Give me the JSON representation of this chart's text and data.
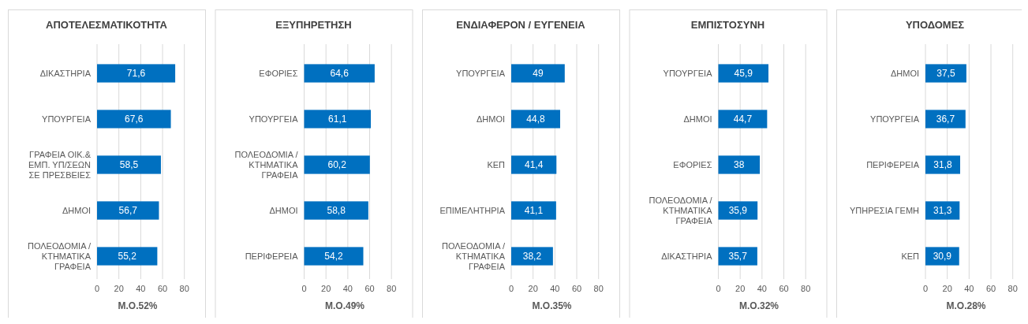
{
  "chart_data": [
    {
      "type": "bar",
      "orientation": "horizontal",
      "title": "ΑΠΟΤΕΛΕΣΜΑΤΙΚΟΤΗΤΑ",
      "xlabel": "Μ.Ο.52%",
      "categories": [
        "ΔΙΚΑΣΤΗΡΙΑ",
        "ΥΠΟΥΡΓΕΙΑ",
        "ΓΡΑΦΕΙΑ ΟΙΚ.& ΕΜΠ. ΥΠ/ΣΕΩΝ ΣΕ ΠΡΕΣΒΕΙΕΣ",
        "ΔΗΜΟΙ",
        "ΠΟΛΕΟΔΟΜΙΑ / ΚΤΗΜΑΤΙΚΑ ΓΡΑΦΕΙΑ"
      ],
      "values": [
        71.6,
        67.6,
        58.5,
        56.7,
        55.2
      ],
      "value_labels": [
        "71,6",
        "67,6",
        "58,5",
        "56,7",
        "55,2"
      ],
      "color": "#0070c0",
      "xlim": [
        0,
        80
      ],
      "xticks": [
        0,
        20,
        40,
        60,
        80
      ],
      "grid": "x"
    },
    {
      "type": "bar",
      "orientation": "horizontal",
      "title": "ΕΞΥΠΗΡΕΤΗΣΗ",
      "xlabel": "Μ.Ο.49%",
      "categories": [
        "ΕΦΟΡΙΕΣ",
        "ΥΠΟΥΡΓΕΙΑ",
        "ΠΟΛΕΟΔΟΜΙΑ / ΚΤΗΜΑΤΙΚΑ ΓΡΑΦΕΙΑ",
        "ΔΗΜΟΙ",
        "ΠΕΡΙΦΕΡΕΙΑ"
      ],
      "values": [
        64.6,
        61.1,
        60.2,
        58.8,
        54.2
      ],
      "value_labels": [
        "64,6",
        "61,1",
        "60,2",
        "58,8",
        "54,2"
      ],
      "color": "#0070c0",
      "xlim": [
        0,
        80
      ],
      "xticks": [
        0,
        20,
        40,
        60,
        80
      ],
      "grid": "x"
    },
    {
      "type": "bar",
      "orientation": "horizontal",
      "title": "ΕΝΔΙΑΦΕΡΟΝ / ΕΥΓΕΝΕΙΑ",
      "xlabel": "Μ.Ο.35%",
      "categories": [
        "ΥΠΟΥΡΓΕΙΑ",
        "ΔΗΜΟΙ",
        "ΚΕΠ",
        "ΕΠΙΜΕΛΗΤΗΡΙΑ",
        "ΠΟΛΕΟΔΟΜΙΑ / ΚΤΗΜΑΤΙΚΑ ΓΡΑΦΕΙΑ"
      ],
      "values": [
        49,
        44.8,
        41.4,
        41.1,
        38.2
      ],
      "value_labels": [
        "49",
        "44,8",
        "41,4",
        "41,1",
        "38,2"
      ],
      "color": "#0070c0",
      "xlim": [
        0,
        80
      ],
      "xticks": [
        0,
        20,
        40,
        60,
        80
      ],
      "grid": "x"
    },
    {
      "type": "bar",
      "orientation": "horizontal",
      "title": "ΕΜΠΙΣΤΟΣΥΝΗ",
      "xlabel": "Μ.Ο.32%",
      "categories": [
        "ΥΠΟΥΡΓΕΙΑ",
        "ΔΗΜΟΙ",
        "ΕΦΟΡΙΕΣ",
        "ΠΟΛΕΟΔΟΜΙΑ / ΚΤΗΜΑΤΙΚΑ ΓΡΑΦΕΙΑ",
        "ΔΙΚΑΣΤΗΡΙΑ"
      ],
      "values": [
        45.9,
        44.7,
        38,
        35.9,
        35.7
      ],
      "value_labels": [
        "45,9",
        "44,7",
        "38",
        "35,9",
        "35,7"
      ],
      "color": "#0070c0",
      "xlim": [
        0,
        80
      ],
      "xticks": [
        0,
        20,
        40,
        60,
        80
      ],
      "grid": "x"
    },
    {
      "type": "bar",
      "orientation": "horizontal",
      "title": "ΥΠΟΔΟΜΕΣ",
      "xlabel": "Μ.Ο.28%",
      "categories": [
        "ΔΗΜΟΙ",
        "ΥΠΟΥΡΓΕΙΑ",
        "ΠΕΡΙΦΕΡΕΙΑ",
        "ΥΠΗΡΕΣΙΑ ΓΕΜΗ",
        "ΚΕΠ"
      ],
      "values": [
        37.5,
        36.7,
        31.8,
        31.3,
        30.9
      ],
      "value_labels": [
        "37,5",
        "36,7",
        "31,8",
        "31,3",
        "30,9"
      ],
      "color": "#0070c0",
      "xlim": [
        0,
        80
      ],
      "xticks": [
        0,
        20,
        40,
        60,
        80
      ],
      "grid": "x"
    }
  ]
}
